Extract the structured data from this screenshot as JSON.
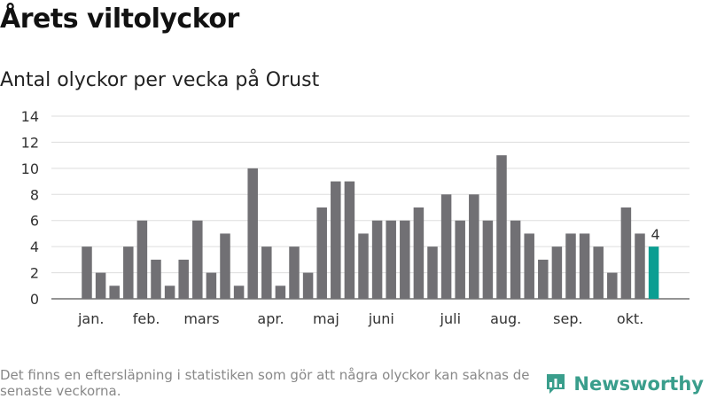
{
  "title": "Årets viltolyckor",
  "subtitle": "Antal olyckor per vecka på Orust",
  "footnote": "Det finns en eftersläpning i statistiken som gör att några olyckor kan saknas de senaste veckorna.",
  "brand": {
    "name": "Newsworthy",
    "color": "#3a9e8c"
  },
  "chart_data": {
    "type": "bar",
    "ylim": [
      0,
      14
    ],
    "yticks": [
      0,
      2,
      4,
      6,
      8,
      10,
      12,
      14
    ],
    "grid": true,
    "values": [
      4,
      2,
      1,
      4,
      6,
      3,
      1,
      3,
      6,
      2,
      5,
      1,
      10,
      4,
      1,
      4,
      2,
      7,
      9,
      9,
      5,
      6,
      6,
      6,
      7,
      4,
      8,
      6,
      8,
      6,
      11,
      6,
      5,
      3,
      4,
      5,
      5,
      4,
      2,
      7,
      5,
      4
    ],
    "bar_color": "#717074",
    "highlight_color": "#0b9e92",
    "highlight_index": 41,
    "highlight_label": "4",
    "month_labels": [
      {
        "label": "jan.",
        "bar_index": 0.3
      },
      {
        "label": "feb.",
        "bar_index": 4.3
      },
      {
        "label": "mars",
        "bar_index": 8.3
      },
      {
        "label": "apr.",
        "bar_index": 13.3
      },
      {
        "label": "maj",
        "bar_index": 17.3
      },
      {
        "label": "juni",
        "bar_index": 21.3
      },
      {
        "label": "juli",
        "bar_index": 26.3
      },
      {
        "label": "aug.",
        "bar_index": 30.3
      },
      {
        "label": "sep.",
        "bar_index": 34.8
      },
      {
        "label": "okt.",
        "bar_index": 39.3
      }
    ]
  }
}
